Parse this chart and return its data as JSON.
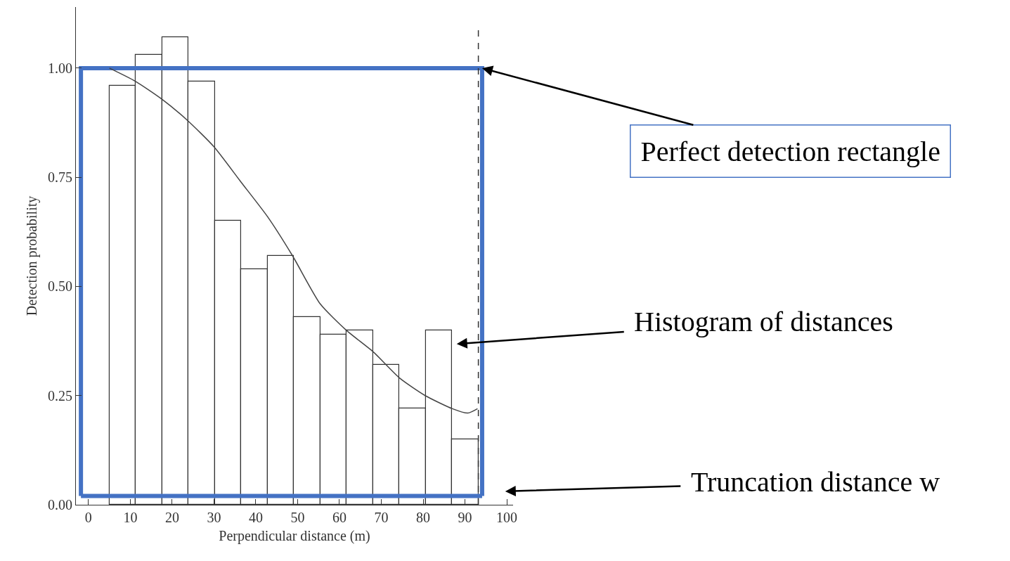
{
  "chart_data": {
    "type": "histogram",
    "xlabel": "Perpendicular distance (m)",
    "ylabel": "Detection probability",
    "bins": [
      5.0,
      11.3,
      17.6,
      23.9,
      30.2,
      36.5,
      42.8,
      49.1,
      55.4,
      61.7,
      68.0,
      74.3,
      80.6,
      86.9,
      93.2
    ],
    "values": [
      0.96,
      1.03,
      1.07,
      0.97,
      0.65,
      0.54,
      0.57,
      0.43,
      0.39,
      0.4,
      0.32,
      0.22,
      0.4,
      0.15
    ],
    "color": "#ffffff",
    "series": [
      {
        "type": "line",
        "color": "#444444",
        "x": [
          5,
          11.2,
          17.4,
          23.7,
          30,
          36.4,
          42.8,
          48.8,
          55.4,
          61.6,
          68.1,
          74.4,
          80.5,
          87,
          90.7,
          93
        ],
        "values": [
          1.0,
          0.97,
          0.93,
          0.88,
          0.82,
          0.74,
          0.66,
          0.57,
          0.46,
          0.4,
          0.35,
          0.29,
          0.25,
          0.22,
          0.21,
          0.22
        ]
      },
      {
        "type": "line",
        "color": "#4472c4",
        "x": [
          -1.8,
          -1.8,
          94.1,
          94.1
        ],
        "values": [
          0.02,
          1.0,
          1.0,
          0.02
        ]
      },
      {
        "type": "line",
        "color": "#4472c4",
        "x": [
          -1.8,
          94.1
        ],
        "values": [
          0.02,
          0.02
        ]
      }
    ],
    "ref_lines": [
      {
        "axis": "x",
        "value": 93.2,
        "color": "#333333",
        "line_style": "dashed"
      }
    ],
    "annotations": [
      {
        "text": "Perfect detection rectangle",
        "x": 94.1,
        "y": 1.0
      },
      "Histogram of distances",
      "Truncation distance w"
    ],
    "xlim": [
      -3,
      101.5
    ],
    "xticks": [
      0,
      10,
      20,
      30,
      40,
      50,
      60,
      70,
      80,
      90,
      100
    ],
    "ylim": [
      0,
      1.14
    ],
    "yticks": [
      {
        "value": 0,
        "label": "0.00"
      },
      {
        "value": 0.25,
        "label": "0.25"
      },
      {
        "value": 0.5,
        "label": "0.50"
      },
      {
        "value": 0.75,
        "label": "0.75"
      },
      {
        "value": 1,
        "label": "1.00"
      }
    ],
    "grid": false,
    "legend": false,
    "marker": "none"
  }
}
